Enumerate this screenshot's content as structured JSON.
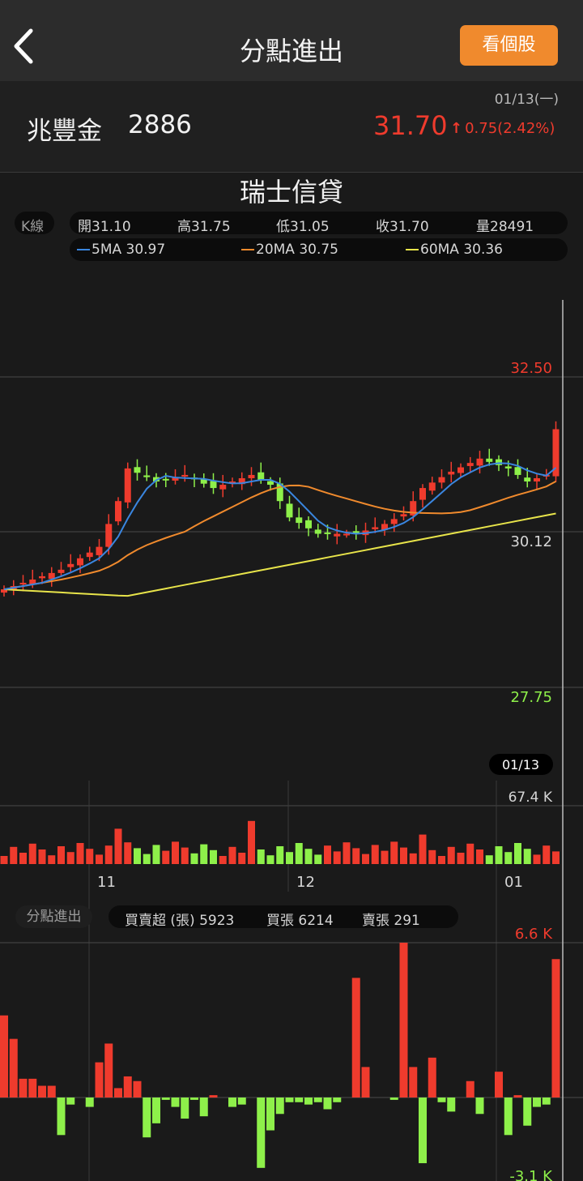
{
  "nav": {
    "title": "分點進出",
    "stock_button": "看個股",
    "back_icon": "chevron-left-icon"
  },
  "quote": {
    "date": "01/13(一)",
    "name": "兆豐金",
    "code": "2886",
    "price": "31.70",
    "change_arrow": "↑",
    "change": "0.75(2.42%)",
    "change_color": "#ef3b2d"
  },
  "broker": "瑞士信貸",
  "kline": {
    "tag": "K線",
    "open": "開31.10",
    "high": "高31.75",
    "low": "低31.05",
    "close": "收31.70",
    "volume": "量28491",
    "ma5": "5MA 30.97",
    "ma20": "20MA 30.75",
    "ma60": "60MA 30.36",
    "ma5_color": "#3a86e0",
    "ma20_color": "#f08a2d",
    "ma60_color": "#e8e44a"
  },
  "price_axis": {
    "top": "32.50",
    "mid": "30.12",
    "bottom": "27.75"
  },
  "cursor_date": "01/13",
  "volume_axis": {
    "max": "67.4 K"
  },
  "months": [
    "11",
    "12",
    "01"
  ],
  "branch": {
    "tag": "分點進出",
    "net": "買賣超 (張) 5923",
    "buy": "買張 6214",
    "sell": "賣張 291",
    "max": "6.6 K",
    "min": "-3.1 K"
  },
  "colors": {
    "up": "#ef3b2d",
    "down": "#8ef04a",
    "background": "#1a1a1a"
  },
  "chart_data": [
    {
      "type": "candlestick",
      "ylim": [
        27.75,
        32.5
      ],
      "ticks": [
        "32.50",
        "30.12",
        "27.75"
      ],
      "x_labels": [
        "11",
        "12",
        "01"
      ],
      "series_names": [
        "5MA",
        "20MA",
        "60MA"
      ]
    },
    {
      "type": "bar",
      "ymax": "67.4 K",
      "x_labels": [
        "11",
        "12",
        "01"
      ]
    },
    {
      "type": "bar",
      "ylim": [
        -3.1,
        6.6
      ],
      "unit": "K",
      "last_value": 5923
    }
  ]
}
